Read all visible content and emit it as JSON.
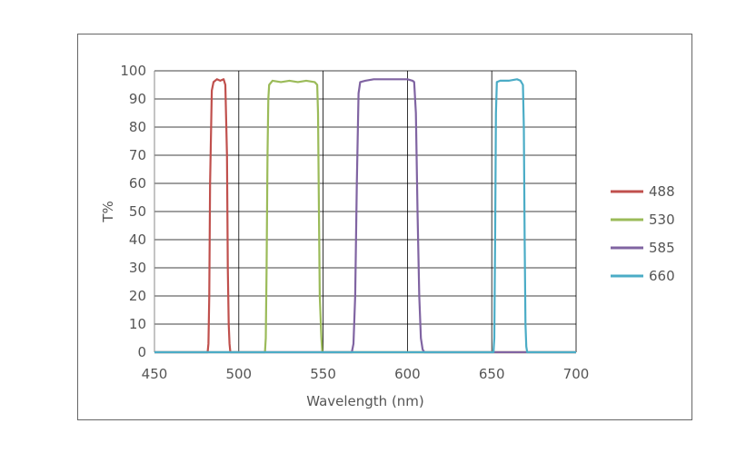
{
  "chart_data": {
    "type": "line",
    "title": "",
    "xlabel": "Wavelength (nm)",
    "ylabel": "T%",
    "xlim": [
      450,
      700
    ],
    "ylim": [
      0,
      100
    ],
    "xticks": [
      450,
      500,
      550,
      600,
      650,
      700
    ],
    "yticks": [
      0,
      10,
      20,
      30,
      40,
      50,
      60,
      70,
      80,
      90,
      100
    ],
    "grid": "horizontal and vertical",
    "legend_position": "right",
    "series": [
      {
        "name": "488",
        "color": "#c0504d",
        "x": [
          450,
          481.5,
          482,
          482.5,
          483,
          484,
          485,
          487,
          489,
          491,
          492,
          493,
          493.5,
          494,
          494.5,
          495,
          700
        ],
        "y": [
          0,
          0,
          3,
          20,
          60,
          93,
          96,
          97,
          96.5,
          97,
          95,
          70,
          30,
          10,
          3,
          0,
          0
        ]
      },
      {
        "name": "530",
        "color": "#9bbb59",
        "x": [
          450,
          515.5,
          516,
          516.5,
          517,
          517.5,
          518,
          520,
          525,
          530,
          535,
          540,
          545,
          546.5,
          547,
          547.5,
          548,
          549,
          549.5,
          700
        ],
        "y": [
          0,
          0,
          5,
          30,
          70,
          90,
          95,
          96.5,
          96,
          96.5,
          96,
          96.5,
          96,
          95,
          85,
          50,
          20,
          5,
          0,
          0
        ]
      },
      {
        "name": "585",
        "color": "#8064a2",
        "x": [
          450,
          567,
          568,
          569,
          570,
          571,
          572,
          575,
          580,
          585,
          590,
          595,
          600,
          603,
          604,
          605,
          606,
          607,
          608,
          609,
          610,
          700
        ],
        "y": [
          0,
          0,
          3,
          20,
          60,
          92,
          96,
          96.5,
          97,
          97,
          97,
          97,
          97,
          96.5,
          96,
          85,
          50,
          20,
          5,
          1,
          0,
          0
        ]
      },
      {
        "name": "660",
        "color": "#4bacc6",
        "x": [
          450,
          651,
          651.5,
          652,
          652.5,
          653,
          655,
          660,
          665,
          667,
          668.5,
          669,
          669.5,
          670,
          670.5,
          671,
          700
        ],
        "y": [
          0,
          0,
          5,
          40,
          85,
          96,
          96.5,
          96.5,
          97,
          96.5,
          95,
          80,
          40,
          10,
          2,
          0,
          0
        ]
      }
    ]
  }
}
